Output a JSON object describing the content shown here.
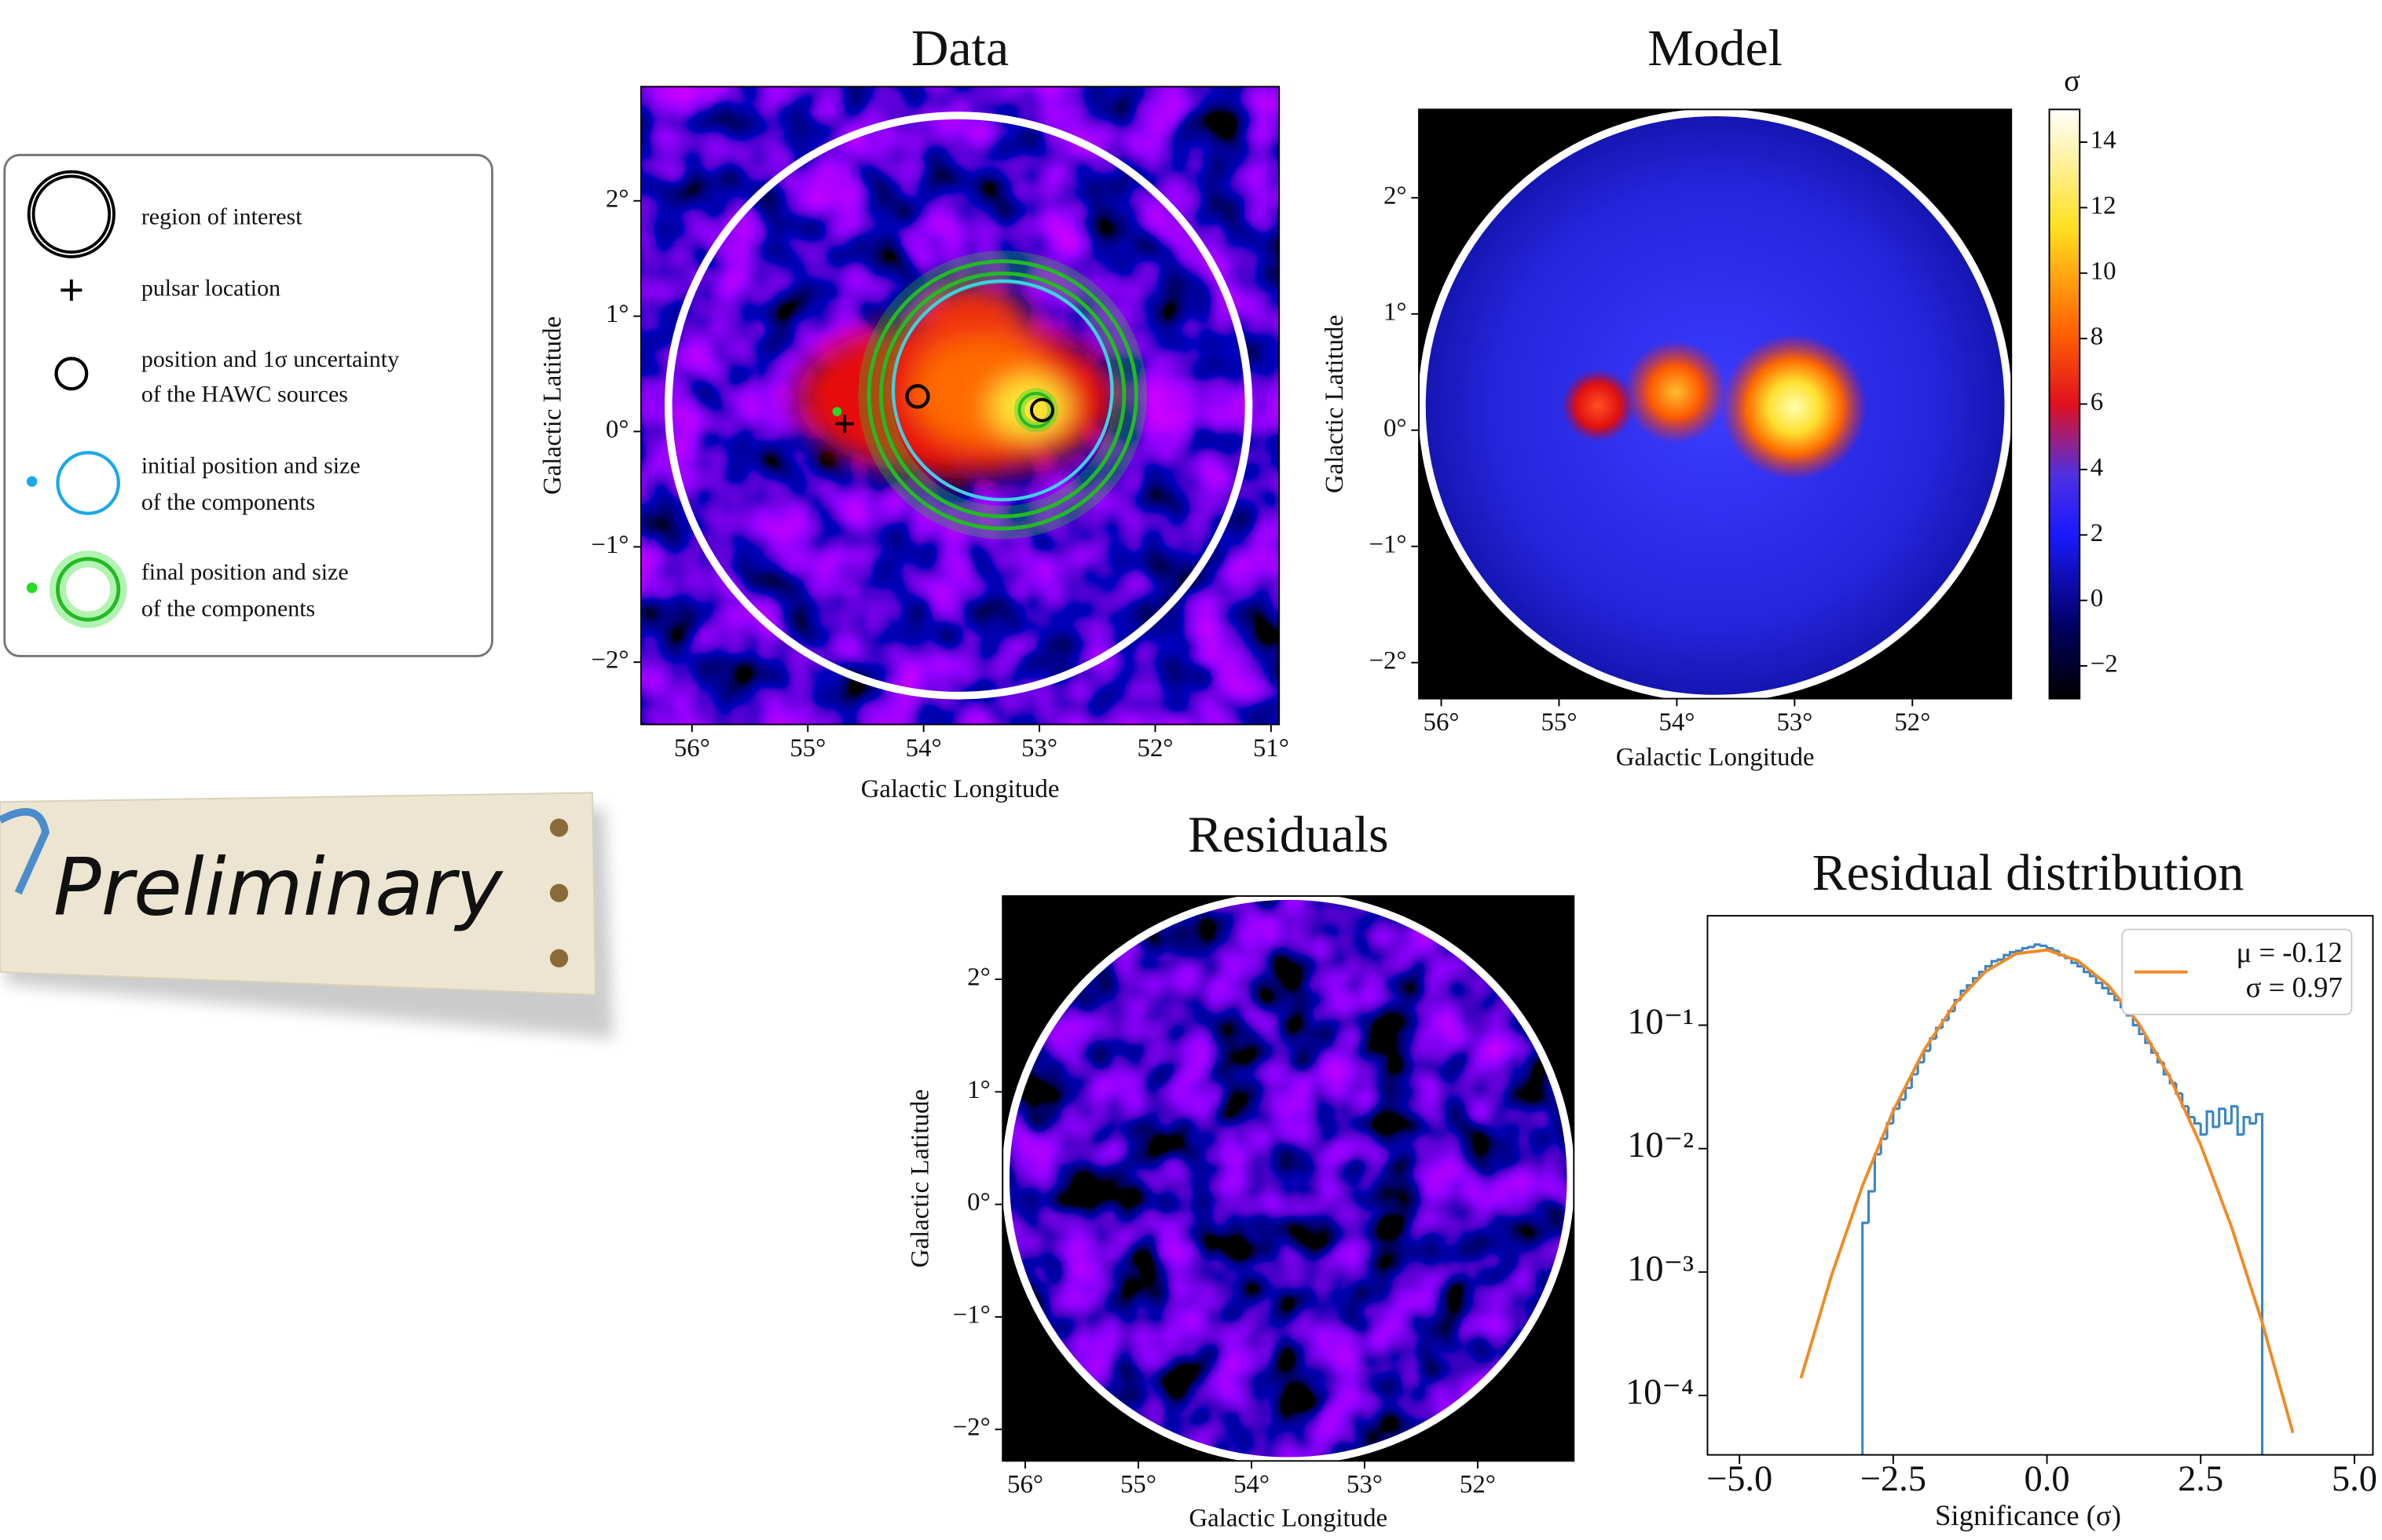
{
  "legend": {
    "items": [
      {
        "lines": [
          "region of interest"
        ]
      },
      {
        "lines": [
          "pulsar location"
        ]
      },
      {
        "lines": [
          "position and 1σ uncertainty",
          "of the HAWC sources"
        ]
      },
      {
        "lines": [
          "initial position and size",
          "of the components"
        ]
      },
      {
        "lines": [
          "final position and size",
          "of the components"
        ]
      }
    ]
  },
  "stamp": "Preliminary",
  "maps": [
    {
      "title": "Data",
      "xlabel": "Galactic Longitude",
      "ylabel": "Galactic Latitude",
      "xlim": [
        56.44,
        50.93
      ],
      "ylim": [
        -2.54,
        2.99
      ],
      "xticks": [
        {
          "value": 56,
          "label": "56°"
        },
        {
          "value": 55,
          "label": "55°"
        },
        {
          "value": 54,
          "label": "54°"
        },
        {
          "value": 53,
          "label": "53°"
        },
        {
          "value": 52,
          "label": "52°"
        },
        {
          "value": 51,
          "label": "51°"
        }
      ],
      "yticks": [
        {
          "value": 2,
          "label": "2°"
        },
        {
          "value": 1,
          "label": "1°"
        },
        {
          "value": 0,
          "label": "0°"
        },
        {
          "value": -1,
          "label": "−1°"
        },
        {
          "value": -2,
          "label": "−2°"
        }
      ]
    },
    {
      "title": "Model",
      "xlabel": "Galactic Longitude",
      "ylabel": "Galactic Latitude",
      "xlim": [
        56.19,
        51.16
      ],
      "ylim": [
        -2.31,
        2.76
      ],
      "xticks": [
        {
          "value": 56,
          "label": "56°"
        },
        {
          "value": 55,
          "label": "55°"
        },
        {
          "value": 54,
          "label": "54°"
        },
        {
          "value": 53,
          "label": "53°"
        },
        {
          "value": 52,
          "label": "52°"
        }
      ],
      "yticks": [
        {
          "value": 2,
          "label": "2°"
        },
        {
          "value": 1,
          "label": "1°"
        },
        {
          "value": 0,
          "label": "0°"
        },
        {
          "value": -1,
          "label": "−1°"
        },
        {
          "value": -2,
          "label": "−2°"
        }
      ],
      "colorbar": {
        "label": "σ",
        "lim": [
          -3,
          15
        ],
        "ticks": [
          14,
          12,
          10,
          8,
          6,
          4,
          2,
          0,
          {
            "value": -2,
            "label": "−2"
          }
        ]
      }
    },
    {
      "title": "Residuals",
      "xlabel": "Galactic Longitude",
      "ylabel": "Galactic Latitude",
      "xlim": [
        56.2,
        51.15
      ],
      "ylim": [
        -2.28,
        2.74
      ],
      "xticks": [
        {
          "value": 56,
          "label": "56°"
        },
        {
          "value": 55,
          "label": "55°"
        },
        {
          "value": 54,
          "label": "54°"
        },
        {
          "value": 53,
          "label": "53°"
        },
        {
          "value": 52,
          "label": "52°"
        }
      ],
      "yticks": [
        {
          "value": 2,
          "label": "2°"
        },
        {
          "value": 1,
          "label": "1°"
        },
        {
          "value": 0,
          "label": "0°"
        },
        {
          "value": -1,
          "label": "−1°"
        },
        {
          "value": -2,
          "label": "−2°"
        }
      ]
    }
  ],
  "chart_data": {
    "type": "histogram",
    "title": "Residual distribution",
    "xlabel": "Significance (σ)",
    "color": "#3b84c4",
    "log_y": true,
    "bins": [
      -3.0,
      -2.9,
      -2.8,
      -2.7,
      -2.6,
      -2.5,
      -2.4,
      -2.3,
      -2.2,
      -2.1,
      -2.0,
      -1.9,
      -1.8,
      -1.7,
      -1.6,
      -1.5,
      -1.4,
      -1.3,
      -1.2,
      -1.1,
      -1.0,
      -0.9,
      -0.8,
      -0.7,
      -0.6,
      -0.5,
      -0.4,
      -0.3,
      -0.2,
      -0.1,
      0.0,
      0.1,
      0.2,
      0.3,
      0.4,
      0.5,
      0.6,
      0.7,
      0.8,
      0.9,
      1.0,
      1.1,
      1.2,
      1.3,
      1.4,
      1.5,
      1.6,
      1.7,
      1.8,
      1.9,
      2.0,
      2.1,
      2.2,
      2.3,
      2.4,
      2.5,
      2.6,
      2.7,
      2.8,
      2.9,
      3.0,
      3.1,
      3.2,
      3.3,
      3.4,
      3.5
    ],
    "values": [
      0.0025,
      0.0045,
      0.009,
      0.012,
      0.016,
      0.021,
      0.025,
      0.031,
      0.04,
      0.05,
      0.062,
      0.078,
      0.095,
      0.11,
      0.13,
      0.16,
      0.19,
      0.21,
      0.24,
      0.27,
      0.3,
      0.33,
      0.34,
      0.37,
      0.39,
      0.4,
      0.42,
      0.43,
      0.45,
      0.44,
      0.42,
      0.4,
      0.37,
      0.35,
      0.32,
      0.3,
      0.27,
      0.25,
      0.22,
      0.2,
      0.18,
      0.16,
      0.14,
      0.12,
      0.1,
      0.085,
      0.072,
      0.06,
      0.05,
      0.04,
      0.034,
      0.028,
      0.022,
      0.018,
      0.016,
      0.013,
      0.02,
      0.015,
      0.021,
      0.016,
      0.022,
      0.013,
      0.018,
      0.016,
      0.019
    ],
    "fit": {
      "color": "#f08a24",
      "label": [
        "μ = -0.12",
        "σ = 0.97"
      ],
      "x": [
        -4,
        -3.5,
        -3,
        -2.5,
        -2,
        -1.5,
        -1,
        -0.5,
        0,
        0.5,
        1,
        1.5,
        2,
        2.5,
        3,
        3.5,
        4
      ],
      "y": [
        0.000138,
        0.00095,
        0.005,
        0.0202,
        0.0627,
        0.149,
        0.272,
        0.38,
        0.407,
        0.334,
        0.21,
        0.102,
        0.0377,
        0.0107,
        0.00233,
        0.00039,
        4.97e-05
      ]
    },
    "xlim": [
      -5.52,
      5.3
    ],
    "ylim": [
      3.3e-05,
      0.77
    ],
    "xticks": [
      {
        "value": -5,
        "label": "−5.0"
      },
      {
        "value": -2.5,
        "label": "−2.5"
      },
      {
        "value": 0,
        "label": "0.0"
      },
      {
        "value": 2.5,
        "label": "2.5"
      },
      {
        "value": 5,
        "label": "5.0"
      }
    ],
    "yticks": [
      {
        "value": 0.1,
        "label": "10⁻¹"
      },
      {
        "value": 0.01,
        "label": "10⁻²"
      },
      {
        "value": 0.001,
        "label": "10⁻³"
      },
      {
        "value": 0.0001,
        "label": "10⁻⁴"
      }
    ]
  }
}
